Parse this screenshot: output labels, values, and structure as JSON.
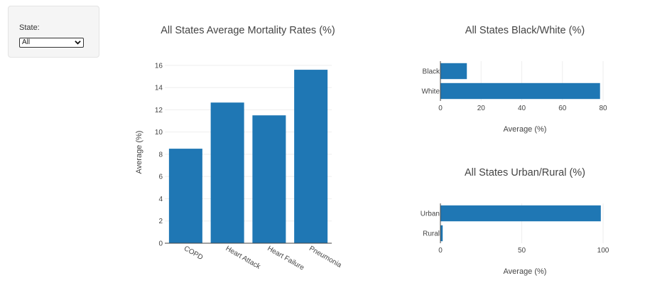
{
  "controls": {
    "state_label": "State:",
    "state_selected": "All"
  },
  "colors": {
    "bar": "#1f77b4",
    "grid": "#eeeeee",
    "axis": "#444444"
  },
  "chart_data": [
    {
      "type": "bar",
      "title": "All States Average Mortality Rates (%)",
      "ylabel": "Average (%)",
      "categories": [
        "COPD",
        "Heart Attack",
        "Heart Failure",
        "Pneumonia"
      ],
      "values": [
        8.5,
        12.65,
        11.5,
        15.6
      ],
      "ylim": [
        0,
        16.5
      ],
      "yticks": [
        "0",
        "2",
        "4",
        "6",
        "8",
        "10",
        "12",
        "14",
        "16"
      ],
      "grid": true
    },
    {
      "type": "bar",
      "orientation": "horizontal",
      "title": "All States Black/White (%)",
      "xlabel": "Average (%)",
      "categories": [
        "Black",
        "White"
      ],
      "values": [
        13,
        78.5
      ],
      "xlim": [
        0,
        80
      ],
      "xticks": [
        "0",
        "20",
        "40",
        "60",
        "80"
      ],
      "grid": true
    },
    {
      "type": "bar",
      "orientation": "horizontal",
      "title": "All States Urban/Rural (%)",
      "xlabel": "Average (%)",
      "categories": [
        "Urban",
        "Rural"
      ],
      "values": [
        98.6,
        1.4
      ],
      "xlim": [
        0,
        100
      ],
      "xticks": [
        "0",
        "50",
        "100"
      ],
      "grid": true
    }
  ]
}
